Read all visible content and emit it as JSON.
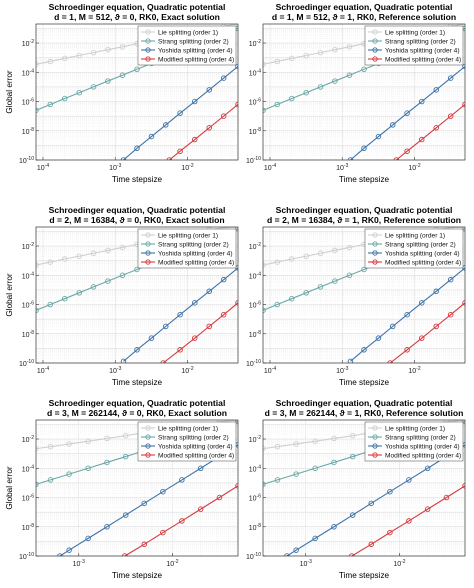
{
  "colors": {
    "lie": "#cfcfcf",
    "strang": "#6aa8a6",
    "yoshida": "#3d73a7",
    "modified": "#d5393d"
  },
  "chart_data": [
    {
      "type": "line",
      "title": [
        "Schroedinger equation, Quadratic potential",
        "d = 1, M = 512, ϑ = 0, RK0, Exact solution"
      ],
      "xlabel": "Time stepsize",
      "ylabel": "Global error",
      "xscale": "log",
      "yscale": "log",
      "xlim": [
        8e-05,
        0.05
      ],
      "ylim": [
        1e-10,
        0.2
      ],
      "xticks": [
        "10^-4",
        "10^-3",
        "10^-2"
      ],
      "yticks": [
        "10^-10",
        "10^-8",
        "10^-6",
        "10^-4",
        "10^-2"
      ],
      "grid": true,
      "legend_position": "top-right",
      "series": [
        {
          "name": "Lie splitting (order 1)",
          "color_key": "lie",
          "x": [
            8e-05,
            0.000126,
            0.0002,
            0.000317,
            0.0005,
            0.00079,
            0.00126,
            0.002,
            0.00317,
            0.005,
            0.0079,
            0.0126,
            0.02,
            0.0317,
            0.05
          ],
          "y": [
            0.00035,
            0.00055,
            0.0009,
            0.0014,
            0.0022,
            0.0035,
            0.0055,
            0.009,
            0.014,
            0.022,
            0.035,
            0.055,
            0.09,
            0.14,
            0.2
          ]
        },
        {
          "name": "Strang splitting (order 2)",
          "color_key": "strang",
          "x": [
            8e-05,
            0.000126,
            0.0002,
            0.000317,
            0.0005,
            0.00079,
            0.00126,
            0.002,
            0.00317,
            0.005,
            0.0079,
            0.0126,
            0.02,
            0.0317,
            0.05
          ],
          "y": [
            2.5e-07,
            6.3e-07,
            1.6e-06,
            4e-06,
            1e-05,
            2.5e-05,
            6.3e-05,
            0.00016,
            0.0004,
            0.001,
            0.0025,
            0.0063,
            0.016,
            0.04,
            0.1
          ]
        },
        {
          "name": "Yoshida splitting (order 4)",
          "color_key": "yoshida",
          "x": [
            0.0013,
            0.002,
            0.00317,
            0.005,
            0.0079,
            0.0126,
            0.02,
            0.0317,
            0.05
          ],
          "y": [
            1e-10,
            6.3e-10,
            4e-09,
            2.5e-08,
            1.6e-07,
            1e-06,
            6.3e-06,
            4e-05,
            0.00025
          ]
        },
        {
          "name": "Modified splitting (order 4)",
          "color_key": "modified",
          "x": [
            0.0056,
            0.0079,
            0.0126,
            0.02,
            0.0317,
            0.05
          ],
          "y": [
            1e-10,
            4e-10,
            2.5e-09,
            1.6e-08,
            1e-07,
            6.3e-07
          ]
        }
      ]
    },
    {
      "type": "line",
      "title": [
        "Schroedinger equation, Quadratic potential",
        "d = 1, M = 512, ϑ = 1, RK0, Reference solution"
      ],
      "xlabel": "Time stepsize",
      "ylabel": "",
      "xscale": "log",
      "yscale": "log",
      "xlim": [
        8e-05,
        0.05
      ],
      "ylim": [
        1e-10,
        0.2
      ],
      "xticks": [
        "10^-4",
        "10^-3",
        "10^-2"
      ],
      "yticks": [
        "10^-10",
        "10^-8",
        "10^-6",
        "10^-4",
        "10^-2"
      ],
      "grid": true,
      "legend_position": "top-right",
      "series": [
        {
          "name": "Lie splitting (order 1)",
          "color_key": "lie",
          "x": [
            8e-05,
            0.000126,
            0.0002,
            0.000317,
            0.0005,
            0.00079,
            0.00126,
            0.002,
            0.00317,
            0.005,
            0.0079,
            0.0126,
            0.02,
            0.0317,
            0.05
          ],
          "y": [
            0.00035,
            0.00055,
            0.0009,
            0.0014,
            0.0022,
            0.0035,
            0.0055,
            0.009,
            0.014,
            0.022,
            0.035,
            0.055,
            0.09,
            0.14,
            0.2
          ]
        },
        {
          "name": "Strang splitting (order 2)",
          "color_key": "strang",
          "x": [
            8e-05,
            0.000126,
            0.0002,
            0.000317,
            0.0005,
            0.00079,
            0.00126,
            0.002,
            0.00317,
            0.005,
            0.0079,
            0.0126,
            0.02,
            0.0317,
            0.05
          ],
          "y": [
            2.5e-07,
            6.3e-07,
            1.6e-06,
            4e-06,
            1e-05,
            2.5e-05,
            6.3e-05,
            0.00016,
            0.0004,
            0.001,
            0.0025,
            0.0063,
            0.016,
            0.04,
            0.1
          ]
        },
        {
          "name": "Yoshida splitting (order 4)",
          "color_key": "yoshida",
          "x": [
            0.0013,
            0.002,
            0.00317,
            0.005,
            0.0079,
            0.0126,
            0.02,
            0.0317,
            0.05
          ],
          "y": [
            1e-10,
            6.3e-10,
            4e-09,
            2.5e-08,
            1.6e-07,
            1e-06,
            6.3e-06,
            4e-05,
            0.00025
          ]
        },
        {
          "name": "Modified splitting (order 4)",
          "color_key": "modified",
          "x": [
            0.0056,
            0.0079,
            0.0126,
            0.02,
            0.0317,
            0.05
          ],
          "y": [
            1e-10,
            4e-10,
            2.5e-09,
            1.6e-08,
            1e-07,
            6.3e-07
          ]
        }
      ]
    },
    {
      "type": "line",
      "title": [
        "Schroedinger equation, Quadratic potential",
        "d = 2, M = 16384, ϑ = 0, RK0, Exact solution"
      ],
      "xlabel": "Time stepsize",
      "ylabel": "Global error",
      "xscale": "log",
      "yscale": "log",
      "xlim": [
        8e-05,
        0.05
      ],
      "ylim": [
        1e-10,
        0.2
      ],
      "xticks": [
        "10^-4",
        "10^-3",
        "10^-2"
      ],
      "yticks": [
        "10^-10",
        "10^-8",
        "10^-6",
        "10^-4",
        "10^-2"
      ],
      "grid": true,
      "legend_position": "top-right",
      "series": [
        {
          "name": "Lie splitting (order 1)",
          "color_key": "lie",
          "x": [
            8e-05,
            0.000126,
            0.0002,
            0.000317,
            0.0005,
            0.00079,
            0.00126,
            0.002,
            0.00317,
            0.005,
            0.0079,
            0.0126,
            0.02,
            0.0317,
            0.05
          ],
          "y": [
            0.0005,
            0.0008,
            0.0013,
            0.002,
            0.0032,
            0.005,
            0.008,
            0.013,
            0.02,
            0.032,
            0.05,
            0.08,
            0.13,
            0.18,
            0.2
          ]
        },
        {
          "name": "Strang splitting (order 2)",
          "color_key": "strang",
          "x": [
            8e-05,
            0.000126,
            0.0002,
            0.000317,
            0.0005,
            0.00079,
            0.00126,
            0.002,
            0.00317,
            0.005,
            0.0079,
            0.0126,
            0.02,
            0.0317,
            0.05
          ],
          "y": [
            4e-07,
            1e-06,
            2.5e-06,
            6.3e-06,
            1.6e-05,
            4e-05,
            0.0001,
            0.00025,
            0.00063,
            0.0016,
            0.004,
            0.01,
            0.025,
            0.063,
            0.15
          ]
        },
        {
          "name": "Yoshida splitting (order 4)",
          "color_key": "yoshida",
          "x": [
            0.0013,
            0.002,
            0.00317,
            0.005,
            0.0079,
            0.0126,
            0.02,
            0.0317,
            0.05
          ],
          "y": [
            1.3e-10,
            8e-10,
            5e-09,
            3.2e-08,
            2e-07,
            1.3e-06,
            8e-06,
            5e-05,
            0.00032
          ]
        },
        {
          "name": "Modified splitting (order 4)",
          "color_key": "modified",
          "x": [
            0.0046,
            0.0079,
            0.0126,
            0.02,
            0.0317,
            0.05
          ],
          "y": [
            1e-10,
            8e-10,
            5e-09,
            3.2e-08,
            2e-07,
            1.3e-06
          ]
        }
      ]
    },
    {
      "type": "line",
      "title": [
        "Schroedinger equation, Quadratic potential",
        "d = 2, M = 16384, ϑ = 1, RK0, Reference solution"
      ],
      "xlabel": "Time stepsize",
      "ylabel": "",
      "xscale": "log",
      "yscale": "log",
      "xlim": [
        8e-05,
        0.05
      ],
      "ylim": [
        1e-10,
        0.2
      ],
      "xticks": [
        "10^-4",
        "10^-3",
        "10^-2"
      ],
      "yticks": [
        "10^-10",
        "10^-8",
        "10^-6",
        "10^-4",
        "10^-2"
      ],
      "grid": true,
      "legend_position": "top-right",
      "series": [
        {
          "name": "Lie splitting (order 1)",
          "color_key": "lie",
          "x": [
            8e-05,
            0.000126,
            0.0002,
            0.000317,
            0.0005,
            0.00079,
            0.00126,
            0.002,
            0.00317,
            0.005,
            0.0079,
            0.0126,
            0.02,
            0.0317,
            0.05
          ],
          "y": [
            0.0005,
            0.0008,
            0.0013,
            0.002,
            0.0032,
            0.005,
            0.008,
            0.013,
            0.02,
            0.032,
            0.05,
            0.08,
            0.13,
            0.18,
            0.2
          ]
        },
        {
          "name": "Strang splitting (order 2)",
          "color_key": "strang",
          "x": [
            8e-05,
            0.000126,
            0.0002,
            0.000317,
            0.0005,
            0.00079,
            0.00126,
            0.002,
            0.00317,
            0.005,
            0.0079,
            0.0126,
            0.02,
            0.0317,
            0.05
          ],
          "y": [
            4e-07,
            1e-06,
            2.5e-06,
            6.3e-06,
            1.6e-05,
            4e-05,
            0.0001,
            0.00025,
            0.00063,
            0.0016,
            0.004,
            0.01,
            0.025,
            0.063,
            0.15
          ]
        },
        {
          "name": "Yoshida splitting (order 4)",
          "color_key": "yoshida",
          "x": [
            0.0013,
            0.002,
            0.00317,
            0.005,
            0.0079,
            0.0126,
            0.02,
            0.0317,
            0.05
          ],
          "y": [
            1.3e-10,
            8e-10,
            5e-09,
            3.2e-08,
            2e-07,
            1.3e-06,
            8e-06,
            5e-05,
            0.00032
          ]
        },
        {
          "name": "Modified splitting (order 4)",
          "color_key": "modified",
          "x": [
            0.0046,
            0.0079,
            0.0126,
            0.02,
            0.0317,
            0.05
          ],
          "y": [
            1e-10,
            8e-10,
            5e-09,
            3.2e-08,
            2e-07,
            1.3e-06
          ]
        }
      ]
    },
    {
      "type": "line",
      "title": [
        "Schroedinger equation, Quadratic potential",
        "d = 3, M = 262144, ϑ = 0, RK0, Exact solution"
      ],
      "xlabel": "Time stepsize",
      "ylabel": "Global error",
      "xscale": "log",
      "yscale": "log",
      "xlim": [
        0.00035,
        0.05
      ],
      "ylim": [
        1e-10,
        0.2
      ],
      "xticks": [
        "10^-3",
        "10^-2"
      ],
      "yticks": [
        "10^-10",
        "10^-8",
        "10^-6",
        "10^-4",
        "10^-2"
      ],
      "grid": true,
      "legend_position": "top-right",
      "series": [
        {
          "name": "Lie splitting (order 1)",
          "color_key": "lie",
          "x": [
            0.00035,
            0.0005,
            0.00079,
            0.00126,
            0.002,
            0.00317,
            0.005,
            0.0079,
            0.0126,
            0.02,
            0.0317,
            0.05
          ],
          "y": [
            0.0022,
            0.003,
            0.0046,
            0.007,
            0.011,
            0.017,
            0.027,
            0.042,
            0.065,
            0.1,
            0.15,
            0.2
          ]
        },
        {
          "name": "Strang splitting (order 2)",
          "color_key": "strang",
          "x": [
            0.00035,
            0.0005,
            0.00079,
            0.00126,
            0.002,
            0.00317,
            0.005,
            0.0079,
            0.0126,
            0.02,
            0.0317,
            0.05
          ],
          "y": [
            8e-06,
            1.6e-05,
            4e-05,
            0.0001,
            0.00025,
            0.00063,
            0.0016,
            0.004,
            0.01,
            0.025,
            0.063,
            0.16
          ]
        },
        {
          "name": "Yoshida splitting (order 4)",
          "color_key": "yoshida",
          "x": [
            0.00063,
            0.00079,
            0.00126,
            0.002,
            0.00317,
            0.005,
            0.0079,
            0.0126,
            0.02,
            0.0317,
            0.05
          ],
          "y": [
            1e-10,
            2.5e-10,
            1.6e-09,
            1e-08,
            6.3e-08,
            4e-07,
            2.5e-06,
            1.6e-05,
            0.0001,
            0.00063,
            0.004
          ]
        },
        {
          "name": "Modified splitting (order 4)",
          "color_key": "modified",
          "x": [
            0.0031,
            0.005,
            0.0079,
            0.0126,
            0.02,
            0.0317,
            0.05
          ],
          "y": [
            1e-10,
            6.3e-10,
            4e-09,
            2.5e-08,
            1.6e-07,
            1e-06,
            6.3e-06
          ]
        }
      ]
    },
    {
      "type": "line",
      "title": [
        "Schroedinger equation, Quadratic potential",
        "d = 3, M = 262144, ϑ = 1, RK0, Reference solution"
      ],
      "xlabel": "Time stepsize",
      "ylabel": "",
      "xscale": "log",
      "yscale": "log",
      "xlim": [
        0.00035,
        0.05
      ],
      "ylim": [
        1e-10,
        0.2
      ],
      "xticks": [
        "10^-3",
        "10^-2"
      ],
      "yticks": [
        "10^-10",
        "10^-8",
        "10^-6",
        "10^-4",
        "10^-2"
      ],
      "grid": true,
      "legend_position": "top-right",
      "series": [
        {
          "name": "Lie splitting (order 1)",
          "color_key": "lie",
          "x": [
            0.00035,
            0.0005,
            0.00079,
            0.00126,
            0.002,
            0.00317,
            0.005,
            0.0079,
            0.0126,
            0.02,
            0.0317,
            0.05
          ],
          "y": [
            0.0022,
            0.003,
            0.0046,
            0.007,
            0.011,
            0.017,
            0.027,
            0.042,
            0.065,
            0.1,
            0.15,
            0.2
          ]
        },
        {
          "name": "Strang splitting (order 2)",
          "color_key": "strang",
          "x": [
            0.00035,
            0.0005,
            0.00079,
            0.00126,
            0.002,
            0.00317,
            0.005,
            0.0079,
            0.0126,
            0.02,
            0.0317,
            0.05
          ],
          "y": [
            8e-06,
            1.6e-05,
            4e-05,
            0.0001,
            0.00025,
            0.00063,
            0.0016,
            0.004,
            0.01,
            0.025,
            0.063,
            0.16
          ]
        },
        {
          "name": "Yoshida splitting (order 4)",
          "color_key": "yoshida",
          "x": [
            0.00063,
            0.00079,
            0.00126,
            0.002,
            0.00317,
            0.005,
            0.0079,
            0.0126,
            0.02,
            0.0317,
            0.05
          ],
          "y": [
            1e-10,
            2.5e-10,
            1.6e-09,
            1e-08,
            6.3e-08,
            4e-07,
            2.5e-06,
            1.6e-05,
            0.0001,
            0.00063,
            0.004
          ]
        },
        {
          "name": "Modified splitting (order 4)",
          "color_key": "modified",
          "x": [
            0.0031,
            0.005,
            0.0079,
            0.0126,
            0.02,
            0.0317,
            0.05
          ],
          "y": [
            1e-10,
            6.3e-10,
            4e-09,
            2.5e-08,
            1.6e-07,
            1e-06,
            6.3e-06
          ]
        }
      ]
    }
  ]
}
